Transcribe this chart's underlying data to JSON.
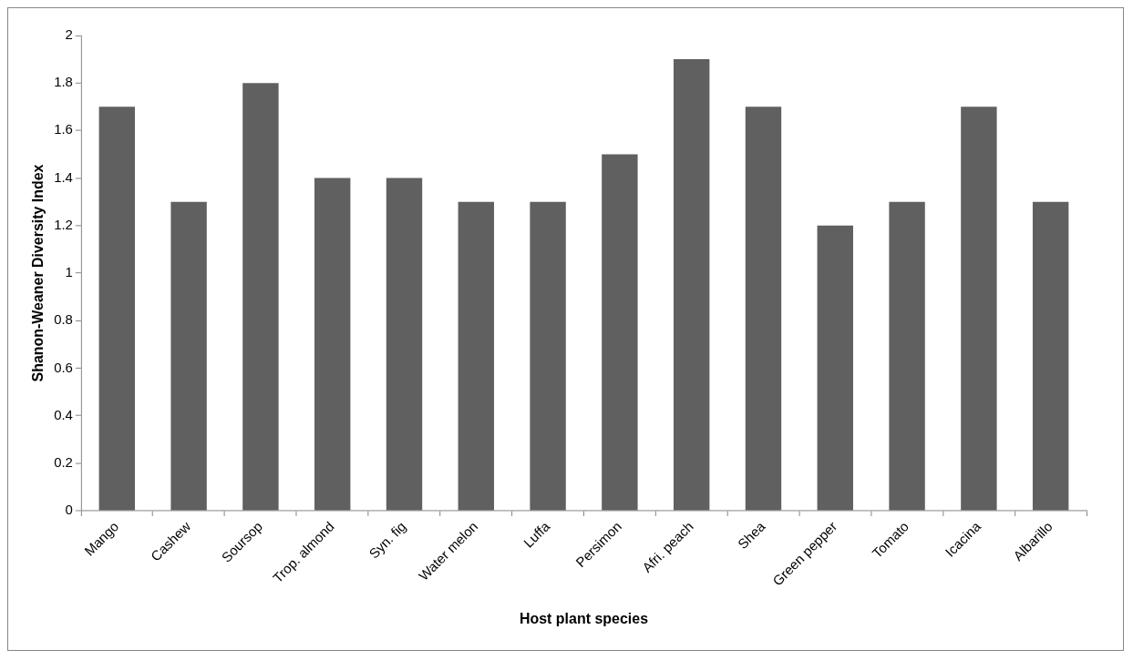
{
  "chart_data": {
    "type": "bar",
    "xlabel": "Host plant species",
    "ylabel": "Shanon-Weaner Diversity Index",
    "categories": [
      "Mango",
      "Cashew",
      "Soursop",
      "Trop. almond",
      "Syn. fig",
      "Water melon",
      "Luffa",
      "Persimon",
      "Afri. peach",
      "Shea",
      "Green pepper",
      "Tomato",
      "Icacina",
      "Albarillo"
    ],
    "values": [
      1.7,
      1.3,
      1.8,
      1.4,
      1.4,
      1.3,
      1.3,
      1.5,
      1.9,
      1.7,
      1.2,
      1.3,
      1.7,
      1.3
    ],
    "color": "#606060",
    "ylim": [
      0,
      2
    ],
    "yticks": [
      0,
      0.2,
      0.4,
      0.6,
      0.8,
      1,
      1.2,
      1.4,
      1.6,
      1.8,
      2
    ],
    "grid": false,
    "legend": false
  }
}
